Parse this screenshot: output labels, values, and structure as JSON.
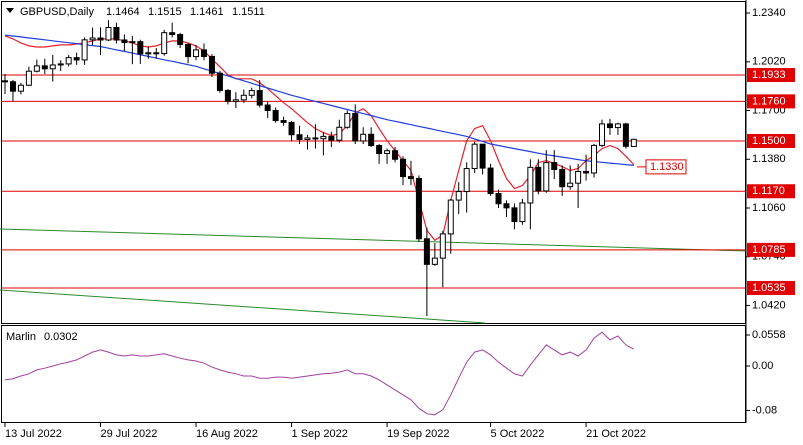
{
  "chart_data": {
    "type": "candlestick",
    "title": "GBPUSD,Daily",
    "categories": [
      "13 Jul 2022",
      null,
      null,
      null,
      null,
      null,
      null,
      null,
      null,
      null,
      null,
      null,
      "29 Jul 2022",
      null,
      null,
      null,
      null,
      null,
      null,
      null,
      null,
      null,
      null,
      null,
      "16 Aug 2022",
      null,
      null,
      null,
      null,
      null,
      null,
      null,
      null,
      null,
      null,
      null,
      "1 Sep 2022",
      null,
      null,
      null,
      null,
      null,
      null,
      null,
      null,
      null,
      null,
      null,
      "19 Sep 2022",
      null,
      null,
      null,
      null,
      null,
      null,
      null,
      null,
      null,
      null,
      null,
      null,
      "5 Oct 2022",
      null,
      null,
      null,
      null,
      null,
      null,
      null,
      null,
      null,
      null,
      null,
      "21 Oct 2022",
      null,
      null,
      null,
      null,
      null,
      null
    ],
    "ohlc": [
      [
        1.1895,
        1.194,
        1.1808,
        1.1889
      ],
      [
        1.1889,
        1.1901,
        1.176,
        1.1827
      ],
      [
        1.1827,
        1.1882,
        1.1806,
        1.1866
      ],
      [
        1.1866,
        1.1988,
        1.186,
        1.1958
      ],
      [
        1.1958,
        1.2035,
        1.195,
        1.1993
      ],
      [
        1.1993,
        1.204,
        1.194,
        1.1974
      ],
      [
        1.1974,
        1.2065,
        1.189,
        1.1999
      ],
      [
        1.1999,
        1.203,
        1.196,
        1.2006
      ],
      [
        1.2006,
        1.2064,
        1.199,
        1.2047
      ],
      [
        1.2047,
        1.208,
        1.2,
        1.2032
      ],
      [
        1.2032,
        1.218,
        1.2,
        1.2164
      ],
      [
        1.2164,
        1.2245,
        1.213,
        1.2176
      ],
      [
        1.2176,
        1.2246,
        1.2064,
        1.2163
      ],
      [
        1.2163,
        1.2293,
        1.2156,
        1.2245
      ],
      [
        1.2245,
        1.2276,
        1.214,
        1.2163
      ],
      [
        1.2163,
        1.22,
        1.209,
        1.2146
      ],
      [
        1.2146,
        1.219,
        1.2004,
        1.2152
      ],
      [
        1.2152,
        1.2165,
        1.2006,
        1.2072
      ],
      [
        1.2072,
        1.212,
        1.204,
        1.2079
      ],
      [
        1.2079,
        1.211,
        1.204,
        1.2074
      ],
      [
        1.2074,
        1.223,
        1.206,
        1.2211
      ],
      [
        1.2211,
        1.2276,
        1.218,
        1.2199
      ],
      [
        1.2199,
        1.221,
        1.211,
        1.2134
      ],
      [
        1.2134,
        1.214,
        1.201,
        1.2054
      ],
      [
        1.2054,
        1.213,
        1.203,
        1.2098
      ],
      [
        1.2098,
        1.214,
        1.203,
        1.2055
      ],
      [
        1.2055,
        1.207,
        1.192,
        1.1945
      ],
      [
        1.1945,
        1.196,
        1.1817,
        1.1832
      ],
      [
        1.1832,
        1.184,
        1.174,
        1.176
      ],
      [
        1.176,
        1.182,
        1.1717,
        1.177
      ],
      [
        1.177,
        1.1838,
        1.175,
        1.18
      ],
      [
        1.18,
        1.185,
        1.178,
        1.1831
      ],
      [
        1.1831,
        1.19,
        1.172,
        1.1736
      ],
      [
        1.1736,
        1.176,
        1.165,
        1.17
      ],
      [
        1.17,
        1.172,
        1.162,
        1.1634
      ],
      [
        1.1634,
        1.166,
        1.16,
        1.1622
      ],
      [
        1.1622,
        1.163,
        1.15,
        1.1541
      ],
      [
        1.1541,
        1.16,
        1.148,
        1.151
      ],
      [
        1.151,
        1.154,
        1.1444,
        1.152
      ],
      [
        1.152,
        1.161,
        1.145,
        1.1515
      ],
      [
        1.1515,
        1.156,
        1.1405,
        1.153
      ],
      [
        1.153,
        1.156,
        1.146,
        1.1505
      ],
      [
        1.1505,
        1.164,
        1.149,
        1.159
      ],
      [
        1.159,
        1.17,
        1.158,
        1.168
      ],
      [
        1.168,
        1.174,
        1.148,
        1.15
      ],
      [
        1.15,
        1.159,
        1.148,
        1.1544
      ],
      [
        1.1544,
        1.159,
        1.146,
        1.147
      ],
      [
        1.147,
        1.148,
        1.135,
        1.1418
      ],
      [
        1.1418,
        1.145,
        1.135,
        1.1436
      ],
      [
        1.1436,
        1.146,
        1.136,
        1.138
      ],
      [
        1.138,
        1.14,
        1.121,
        1.1266
      ],
      [
        1.1266,
        1.137,
        1.121,
        1.1254
      ],
      [
        1.1254,
        1.1274,
        1.0838,
        1.0858
      ],
      [
        1.0858,
        1.093,
        1.035,
        1.069
      ],
      [
        1.069,
        1.083,
        1.068,
        1.0731
      ],
      [
        1.0731,
        1.091,
        1.054,
        1.089
      ],
      [
        1.089,
        1.112,
        1.076,
        1.1112
      ],
      [
        1.1112,
        1.123,
        1.102,
        1.1168
      ],
      [
        1.1168,
        1.136,
        1.103,
        1.1319
      ],
      [
        1.1319,
        1.1495,
        1.129,
        1.1479
      ],
      [
        1.1479,
        1.148,
        1.128,
        1.1322
      ],
      [
        1.1322,
        1.135,
        1.114,
        1.1155
      ],
      [
        1.1155,
        1.118,
        1.106,
        1.1088
      ],
      [
        1.1088,
        1.111,
        1.1,
        1.1061
      ],
      [
        1.1061,
        1.109,
        1.092,
        1.0971
      ],
      [
        1.0971,
        1.112,
        1.095,
        1.1093
      ],
      [
        1.1093,
        1.138,
        1.092,
        1.1327
      ],
      [
        1.1327,
        1.138,
        1.115,
        1.1172
      ],
      [
        1.1172,
        1.144,
        1.116,
        1.1358
      ],
      [
        1.1358,
        1.144,
        1.125,
        1.1313
      ],
      [
        1.1313,
        1.134,
        1.114,
        1.12
      ],
      [
        1.12,
        1.134,
        1.118,
        1.1223
      ],
      [
        1.1223,
        1.135,
        1.106,
        1.13
      ],
      [
        1.13,
        1.141,
        1.124,
        1.129
      ],
      [
        1.129,
        1.148,
        1.126,
        1.1471
      ],
      [
        1.1471,
        1.164,
        1.146,
        1.1612
      ],
      [
        1.1612,
        1.1645,
        1.154,
        1.1588
      ],
      [
        1.1588,
        1.162,
        1.154,
        1.1612
      ],
      [
        1.1612,
        1.162,
        1.145,
        1.1465
      ],
      [
        1.1464,
        1.1515,
        1.1461,
        1.1511
      ]
    ],
    "overlays": [
      {
        "color": "#e8202a",
        "values": [
          1.219,
          1.217,
          1.2144,
          1.2124,
          1.2117,
          1.2117,
          1.2124,
          1.2131,
          1.2131,
          1.2137,
          1.2144,
          1.2157,
          1.217,
          1.217,
          1.217,
          1.2157,
          1.2144,
          1.2124,
          1.2117,
          1.2124,
          1.2144,
          1.2157,
          1.2157,
          1.2144,
          1.2124,
          1.2091,
          1.2039,
          1.1987,
          1.1934,
          1.1908,
          1.1908,
          1.1908,
          1.1882,
          1.1843,
          1.1797,
          1.1751,
          1.1712,
          1.1666,
          1.162,
          1.1581,
          1.1555,
          1.1535,
          1.1548,
          1.16,
          1.1685,
          1.1712,
          1.1666,
          1.1581,
          1.1502,
          1.1437,
          1.1371,
          1.1306,
          1.111,
          1.0913,
          1.0848,
          1.0881,
          1.111,
          1.1306,
          1.1502,
          1.1581,
          1.16,
          1.1502,
          1.1371,
          1.1254,
          1.1188,
          1.1208,
          1.1273,
          1.1358,
          1.1371,
          1.1352,
          1.1332,
          1.1306,
          1.1319,
          1.1371,
          1.1404,
          1.145,
          1.147,
          1.145,
          1.14,
          1.1345
        ]
      },
      {
        "color": "#1f3fdc",
        "values": [
          1.2195,
          1.2189,
          1.2183,
          1.2176,
          1.217,
          1.2164,
          1.2158,
          1.2151,
          1.2145,
          1.2139,
          1.2133,
          1.2126,
          1.212,
          1.2109,
          1.2098,
          1.2088,
          1.2077,
          1.2066,
          1.2055,
          1.2044,
          1.2033,
          1.2023,
          1.2012,
          1.2001,
          1.199,
          1.1974,
          1.1958,
          1.1943,
          1.1927,
          1.1911,
          1.1895,
          1.1879,
          1.1863,
          1.1848,
          1.1832,
          1.1816,
          1.18,
          1.1787,
          1.1773,
          1.176,
          1.1747,
          1.1733,
          1.172,
          1.1707,
          1.1693,
          1.168,
          1.1667,
          1.1653,
          1.164,
          1.1629,
          1.1618,
          1.1607,
          1.1596,
          1.1585,
          1.1574,
          1.1563,
          1.1552,
          1.1541,
          1.153,
          1.1513,
          1.1497,
          1.148,
          1.147,
          1.146,
          1.145,
          1.144,
          1.143,
          1.142,
          1.141,
          1.1402,
          1.1394,
          1.1386,
          1.1378,
          1.137,
          1.1365,
          1.136,
          1.1355,
          1.135,
          1.1345,
          1.134
        ]
      }
    ],
    "levels": [
      {
        "value": 1.1933,
        "label": "1.1933"
      },
      {
        "value": 1.176,
        "label": "1.1760"
      },
      {
        "value": 1.15,
        "label": "1.1500"
      },
      {
        "value": 1.117,
        "label": "1.1170"
      },
      {
        "value": 1.0785,
        "label": "1.0785"
      },
      {
        "value": 1.0535,
        "label": "1.0535"
      }
    ],
    "level_color": "#e00000",
    "annotation": {
      "value": 1.133,
      "label": "1.1330"
    },
    "ylim": [
      1.0305,
      1.2419
    ],
    "yticks": [
      {
        "value": 1.234,
        "label": "1.2340"
      },
      {
        "value": 1.202,
        "label": "1.2020"
      },
      {
        "value": 1.17,
        "label": "1.1700"
      },
      {
        "value": 1.138,
        "label": "1.1380"
      },
      {
        "value": 1.106,
        "label": "1.1060"
      },
      {
        "value": 1.074,
        "label": "1.0740"
      },
      {
        "value": 1.042,
        "label": "1.0420"
      }
    ],
    "indicator": {
      "type": "line",
      "title": "Marlin",
      "color": "#a040a0",
      "values": [
        -0.025,
        -0.023,
        -0.018,
        -0.014,
        -0.007,
        -0.004,
        0.0,
        0.004,
        0.007,
        0.011,
        0.018,
        0.025,
        0.029,
        0.025,
        0.02,
        0.018,
        0.02,
        0.018,
        0.018,
        0.02,
        0.022,
        0.018,
        0.014,
        0.011,
        0.009,
        0.005,
        -0.002,
        -0.007,
        -0.011,
        -0.014,
        -0.018,
        -0.018,
        -0.022,
        -0.022,
        -0.02,
        -0.02,
        -0.022,
        -0.02,
        -0.018,
        -0.016,
        -0.014,
        -0.013,
        -0.011,
        -0.007,
        -0.014,
        -0.014,
        -0.018,
        -0.025,
        -0.034,
        -0.043,
        -0.052,
        -0.061,
        -0.076,
        -0.086,
        -0.088,
        -0.079,
        -0.052,
        -0.022,
        0.007,
        0.025,
        0.029,
        0.02,
        0.007,
        -0.004,
        -0.014,
        -0.018,
        0.002,
        0.02,
        0.038,
        0.029,
        0.02,
        0.025,
        0.018,
        0.029,
        0.05,
        0.061,
        0.047,
        0.054,
        0.038,
        0.0302
      ],
      "ylim": [
        -0.1027,
        0.072
      ],
      "yticks": [
        0.0558,
        {
          "value": 0,
          "label": "0.00"
        },
        -0.08
      ]
    }
  }
}
